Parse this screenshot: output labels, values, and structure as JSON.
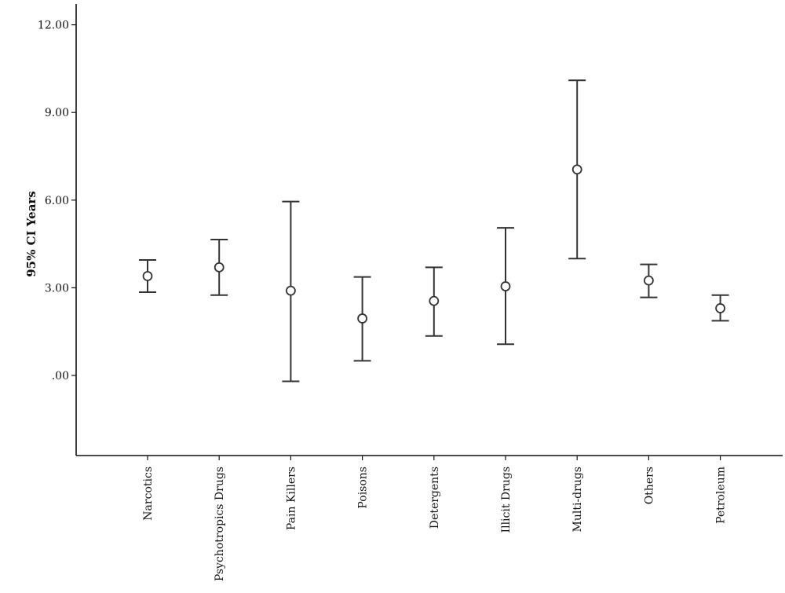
{
  "chart_data": {
    "type": "errorbar",
    "title": "",
    "ylabel": "95% CI Years",
    "xlabel": "",
    "ylim": [
      -2.7,
      12.5
    ],
    "y_ticks": [
      {
        "value": 0,
        "label": ".00"
      },
      {
        "value": 3,
        "label": "3.00"
      },
      {
        "value": 6,
        "label": "6.00"
      },
      {
        "value": 9,
        "label": "9.00"
      },
      {
        "value": 12,
        "label": "12.00"
      }
    ],
    "categories": [
      "Narcotics",
      "Psychotropics Drugs",
      "Pain Killers",
      "Poisons",
      "Detergents",
      "Illicit Drugs",
      "Multi-drugs",
      "Others",
      "Petroleum"
    ],
    "mean": [
      3.4,
      3.7,
      2.9,
      1.95,
      2.55,
      3.05,
      7.05,
      3.25,
      2.3
    ],
    "lower": [
      2.85,
      2.75,
      -0.2,
      0.5,
      1.35,
      1.07,
      4.0,
      2.67,
      1.87
    ],
    "upper": [
      3.95,
      4.65,
      5.95,
      3.37,
      3.7,
      5.05,
      10.1,
      3.8,
      2.75
    ],
    "grid": false,
    "legend": "none"
  }
}
